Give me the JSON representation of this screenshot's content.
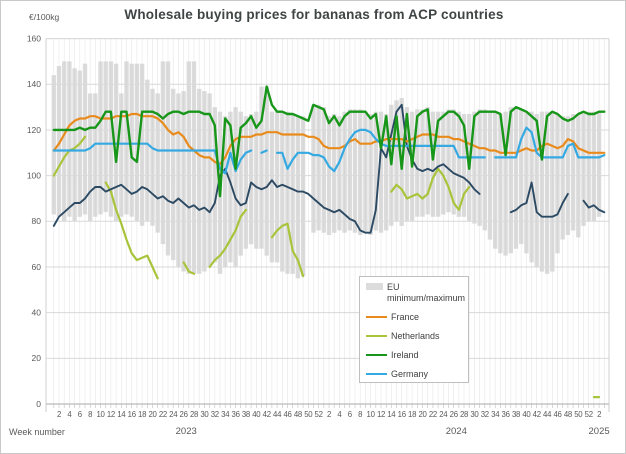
{
  "title": "Wholesale buying prices for bananas from ACP countries",
  "y_axis_unit": "€/100kg",
  "x_axis_label": "Week number",
  "legend": {
    "eu_label": "EU minimum/maximum",
    "band_color": "#dcdcdc"
  },
  "chart_data": {
    "type": "line",
    "title": "Wholesale buying prices for bananas from ACP countries",
    "ylabel": "€/100kg",
    "xlabel": "Week number",
    "ylim": [
      0,
      160
    ],
    "ytick_step": 20,
    "grid": true,
    "legend_position": "inside-center-right",
    "x_years": [
      {
        "label": "2023",
        "weeks": 52
      },
      {
        "label": "2024",
        "weeks": 52
      },
      {
        "label": "2025",
        "weeks": 3
      }
    ],
    "xtick_every": 2,
    "band": {
      "name": "EU minimum/maximum",
      "color": "#dcdcdc",
      "min": [
        83,
        82,
        80,
        82,
        80,
        82,
        83,
        80,
        82,
        83,
        84,
        82,
        80,
        82,
        83,
        82,
        80,
        78,
        80,
        78,
        75,
        70,
        65,
        63,
        60,
        58,
        57,
        57,
        57,
        58,
        60,
        62,
        57,
        60,
        62,
        60,
        65,
        68,
        70,
        68,
        68,
        65,
        62,
        62,
        58,
        57,
        57,
        55,
        56,
        null,
        75,
        76,
        75,
        74,
        75,
        76,
        75,
        76,
        75,
        74,
        75,
        74,
        76,
        75,
        76,
        78,
        80,
        78,
        80,
        80,
        82,
        82,
        83,
        82,
        82,
        83,
        84,
        83,
        82,
        82,
        80,
        79,
        78,
        76,
        72,
        68,
        66,
        65,
        66,
        68,
        70,
        66,
        62,
        60,
        58,
        57,
        58,
        66,
        72,
        74,
        76,
        73,
        78,
        80,
        80,
        82,
        null
      ],
      "max": [
        144,
        148,
        150,
        150,
        147,
        146,
        149,
        136,
        136,
        150,
        150,
        150,
        149,
        136,
        150,
        149,
        149,
        149,
        142,
        138,
        136,
        150,
        150,
        138,
        136,
        137,
        150,
        150,
        138,
        137,
        136,
        130,
        128,
        126,
        128,
        130,
        128,
        126,
        127,
        128,
        139,
        139,
        128,
        128,
        128,
        128,
        127,
        126,
        126,
        null,
        131,
        131,
        130,
        126,
        127,
        126,
        128,
        129,
        129,
        129,
        128,
        127,
        128,
        128,
        127,
        131,
        133,
        134,
        130,
        128,
        129,
        129,
        130,
        128,
        128,
        128,
        129,
        129,
        128,
        127,
        127,
        128,
        129,
        129,
        128,
        128,
        127,
        128,
        130,
        130,
        129,
        128,
        128,
        127,
        128,
        128,
        128,
        127,
        126,
        126,
        127,
        127,
        128,
        128,
        128,
        128,
        null
      ]
    },
    "series": [
      {
        "name": "France",
        "color": "#e98b1c",
        "width": 2.2,
        "in_legend": true,
        "values": [
          111,
          114,
          118,
          122,
          124,
          125,
          125,
          126,
          126,
          125,
          125,
          125,
          126,
          126,
          126,
          127,
          127,
          126,
          126,
          126,
          125,
          123,
          120,
          118,
          119,
          117,
          113,
          111,
          109,
          108,
          108,
          106,
          105,
          108,
          113,
          116,
          117,
          117,
          117,
          118,
          118,
          119,
          119,
          119,
          118,
          118,
          118,
          118,
          118,
          117,
          117,
          116,
          113,
          112,
          112,
          112,
          113,
          115,
          116,
          114,
          114,
          114,
          115,
          115,
          116,
          116,
          116,
          116,
          115,
          116,
          117,
          118,
          118,
          118,
          117,
          117,
          117,
          116,
          116,
          115,
          114,
          113,
          112,
          112,
          111,
          111,
          110,
          110,
          110,
          110,
          111,
          112,
          111,
          111,
          113,
          114,
          113,
          112,
          113,
          116,
          115,
          112,
          111,
          110,
          110,
          110,
          110
        ]
      },
      {
        "name": "Netherlands",
        "color": "#a8c43a",
        "width": 2.2,
        "in_legend": true,
        "values": [
          100,
          104,
          108,
          111,
          112,
          114,
          117,
          null,
          null,
          null,
          97,
          93,
          85,
          79,
          72,
          66,
          63,
          64,
          65,
          60,
          55,
          null,
          null,
          null,
          null,
          62,
          58,
          57,
          null,
          null,
          60,
          63,
          65,
          68,
          72,
          76,
          82,
          85,
          null,
          null,
          null,
          null,
          73,
          76,
          78,
          79,
          67,
          63,
          56,
          null,
          null,
          null,
          null,
          null,
          null,
          null,
          null,
          null,
          null,
          null,
          null,
          null,
          null,
          null,
          null,
          93,
          96,
          94,
          90,
          91,
          92,
          90,
          92,
          99,
          103,
          100,
          95,
          88,
          85,
          92,
          95,
          null,
          null,
          null,
          null,
          null,
          null,
          null,
          null,
          null,
          null,
          null,
          null,
          null,
          null,
          null,
          null,
          null,
          null,
          null,
          null,
          null,
          null,
          null,
          3,
          3,
          null
        ]
      },
      {
        "name": "Ireland",
        "color": "#179619",
        "width": 2.4,
        "in_legend": true,
        "values": [
          120,
          120,
          120,
          120,
          120,
          121,
          120,
          121,
          121,
          124,
          128,
          128,
          106,
          128,
          128,
          108,
          106,
          128,
          128,
          128,
          127,
          125,
          127,
          128,
          128,
          127,
          128,
          128,
          128,
          127,
          127,
          122,
          91,
          125,
          122,
          103,
          121,
          123,
          126,
          121,
          124,
          139,
          131,
          128,
          128,
          127,
          127,
          126,
          125,
          124,
          131,
          130,
          129,
          123,
          126,
          122,
          126,
          128,
          128,
          128,
          128,
          125,
          127,
          112,
          126,
          105,
          126,
          103,
          127,
          104,
          126,
          128,
          129,
          107,
          124,
          126,
          128,
          128,
          126,
          122,
          103,
          126,
          128,
          128,
          128,
          128,
          127,
          109,
          128,
          130,
          129,
          128,
          126,
          124,
          107,
          126,
          128,
          127,
          125,
          124,
          125,
          127,
          128,
          127,
          127,
          128,
          128
        ]
      },
      {
        "name": "Germany",
        "color": "#35a9e1",
        "width": 2.2,
        "in_legend": true,
        "values": [
          111,
          111,
          111,
          111,
          111,
          111,
          111,
          112,
          114,
          114,
          114,
          114,
          114,
          114,
          114,
          114,
          114,
          114,
          114,
          112,
          111,
          111,
          111,
          111,
          111,
          111,
          111,
          111,
          111,
          111,
          111,
          111,
          103,
          101,
          110,
          102,
          107,
          110,
          111,
          null,
          110,
          111,
          null,
          110,
          110,
          103,
          107,
          110,
          110,
          110,
          109,
          109,
          108,
          104,
          102,
          106,
          112,
          116,
          119,
          120,
          120,
          119,
          116,
          114,
          113,
          113,
          113,
          113,
          113,
          113,
          113,
          113,
          113,
          113,
          113,
          113,
          113,
          113,
          108,
          108,
          108,
          108,
          108,
          108,
          null,
          108,
          108,
          108,
          108,
          108,
          116,
          121,
          119,
          110,
          108,
          108,
          108,
          108,
          108,
          113,
          114,
          108,
          108,
          108,
          108,
          108,
          109
        ]
      },
      {
        "name": "unlabeled",
        "color": "#2c4a63",
        "width": 1.9,
        "in_legend": false,
        "values": [
          78,
          82,
          84,
          86,
          88,
          88,
          90,
          93,
          95,
          95,
          93,
          94,
          95,
          96,
          94,
          92,
          93,
          95,
          94,
          92,
          90,
          91,
          89,
          88,
          90,
          88,
          86,
          87,
          85,
          86,
          84,
          88,
          100,
          103,
          97,
          90,
          87,
          88,
          97,
          95,
          94,
          95,
          98,
          95,
          96,
          95,
          94,
          93,
          93,
          92,
          90,
          88,
          86,
          85,
          84,
          85,
          83,
          81,
          80,
          76,
          75,
          75,
          85,
          112,
          108,
          118,
          128,
          131,
          113,
          107,
          103,
          102,
          103,
          102,
          104,
          105,
          103,
          101,
          100,
          99,
          97,
          94,
          92,
          null,
          null,
          null,
          null,
          null,
          84,
          85,
          87,
          88,
          97,
          84,
          82,
          82,
          82,
          83,
          88,
          92,
          null,
          null,
          89,
          86,
          87,
          85,
          84
        ]
      }
    ]
  }
}
